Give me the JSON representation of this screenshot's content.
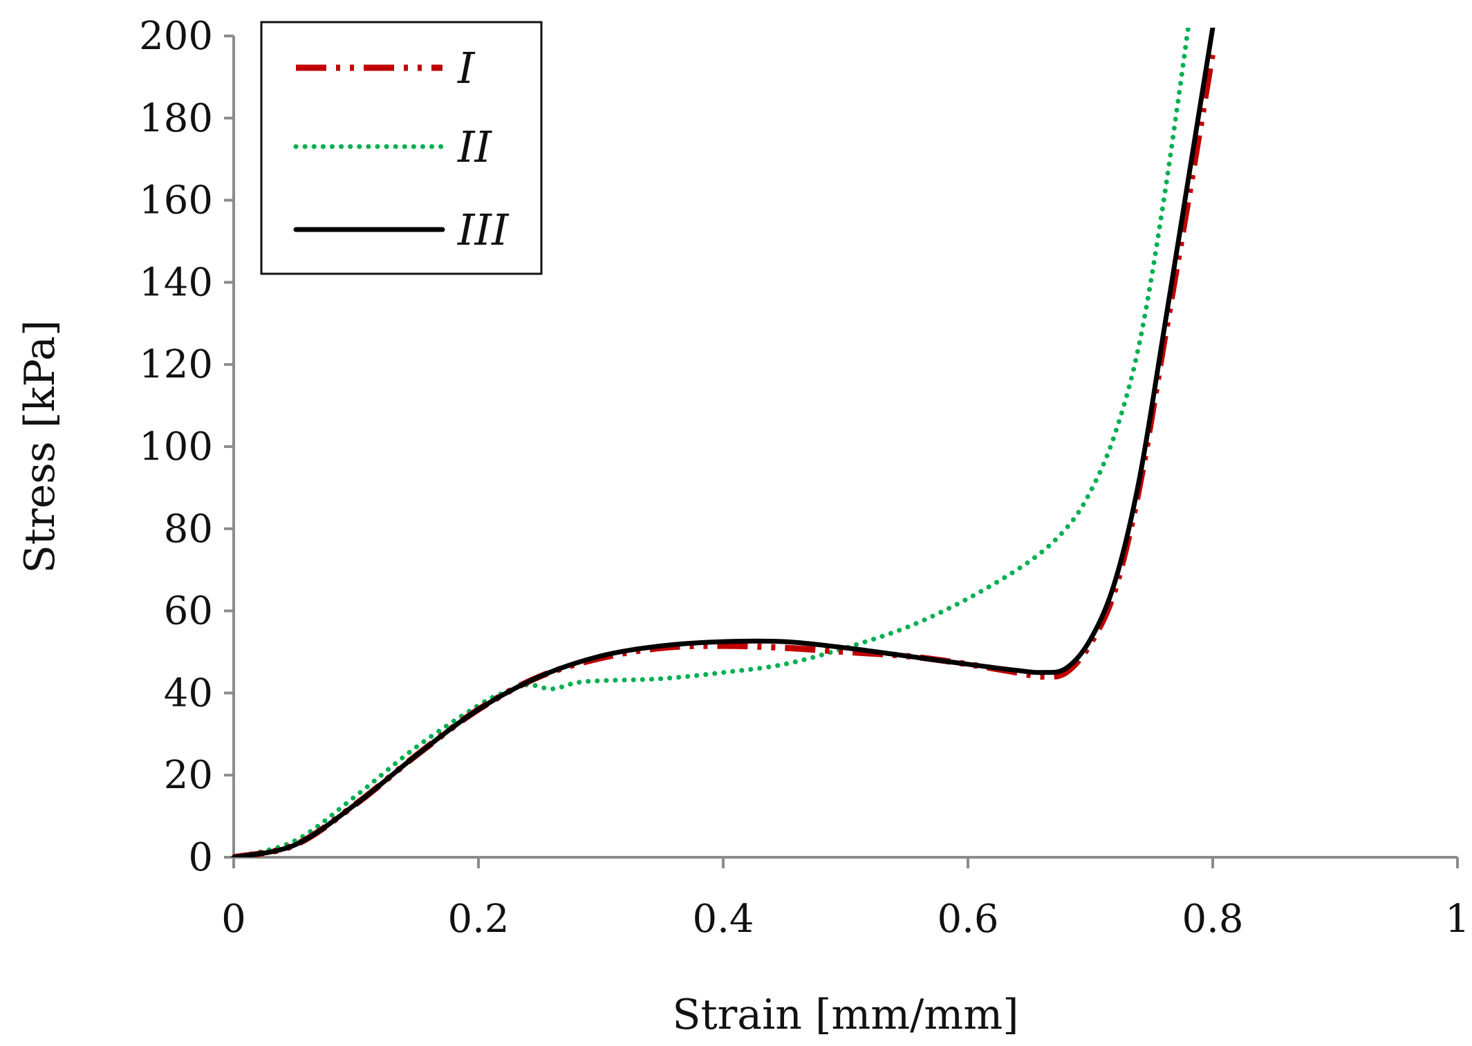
{
  "chart_data": {
    "type": "line",
    "title": "",
    "xlabel": "Strain [mm/mm]",
    "ylabel": "Stress [kPa]",
    "xlim": [
      0,
      1
    ],
    "ylim": [
      0,
      200
    ],
    "xticks": [
      0,
      0.2,
      0.4,
      0.6,
      0.8,
      1
    ],
    "xtick_labels": [
      "0",
      "0.2",
      "0.4",
      "0.6",
      "0.8",
      "1"
    ],
    "yticks": [
      0,
      20,
      40,
      60,
      80,
      100,
      120,
      140,
      160,
      180,
      200
    ],
    "ytick_labels": [
      "0",
      "20",
      "40",
      "60",
      "80",
      "100",
      "120",
      "140",
      "160",
      "180",
      "200"
    ],
    "grid": false,
    "legend_position": "top-left",
    "series": [
      {
        "name": "I",
        "color": "#C00000",
        "style": "dash-dot-dot",
        "x": [
          0,
          0.05,
          0.1,
          0.15,
          0.2,
          0.25,
          0.3,
          0.35,
          0.4,
          0.45,
          0.5,
          0.55,
          0.6,
          0.64,
          0.66,
          0.68,
          0.7,
          0.72,
          0.74,
          0.76,
          0.78,
          0.8
        ],
        "y": [
          0,
          3,
          13,
          25,
          36,
          44,
          48.5,
          51,
          51.5,
          51,
          50,
          49,
          47,
          45,
          44,
          45,
          52,
          65,
          90,
          125,
          160,
          196
        ]
      },
      {
        "name": "II",
        "color": "#00B050",
        "style": "dotted",
        "x": [
          0,
          0.05,
          0.1,
          0.15,
          0.2,
          0.22,
          0.24,
          0.26,
          0.28,
          0.3,
          0.35,
          0.4,
          0.45,
          0.5,
          0.55,
          0.6,
          0.65,
          0.68,
          0.7,
          0.72,
          0.74,
          0.76,
          0.78
        ],
        "y": [
          0,
          4,
          15,
          27,
          37,
          40,
          42,
          41,
          42.5,
          43,
          43.5,
          45,
          47,
          51,
          56,
          63,
          72,
          80,
          89,
          103,
          125,
          160,
          202
        ]
      },
      {
        "name": "III",
        "color": "#000000",
        "style": "solid",
        "x": [
          0,
          0.05,
          0.1,
          0.15,
          0.2,
          0.25,
          0.3,
          0.35,
          0.4,
          0.45,
          0.5,
          0.55,
          0.6,
          0.64,
          0.66,
          0.68,
          0.7,
          0.72,
          0.74,
          0.76,
          0.78,
          0.8
        ],
        "y": [
          0,
          3,
          13,
          25,
          36,
          44,
          49,
          51.5,
          52.5,
          52.5,
          51,
          49,
          47,
          45.5,
          45,
          46,
          53,
          67,
          92,
          128,
          165,
          202
        ]
      }
    ]
  }
}
